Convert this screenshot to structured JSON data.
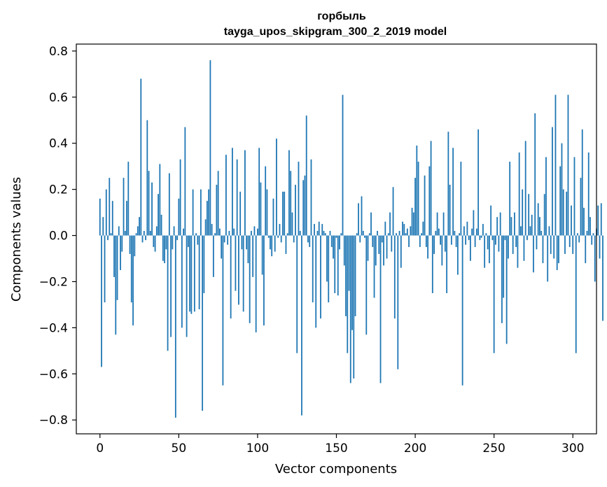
{
  "chart_data": {
    "type": "bar",
    "title": "горбыль",
    "subtitle": "tayga_upos_skipgram_300_2_2019 model",
    "xlabel": "Vector components",
    "ylabel": "Components values",
    "xlim": [
      -15,
      315
    ],
    "ylim": [
      -0.86,
      0.83
    ],
    "xticks": [
      0,
      50,
      100,
      150,
      200,
      250,
      300
    ],
    "xtick_labels": [
      "0",
      "50",
      "100",
      "150",
      "200",
      "250",
      "300"
    ],
    "yticks": [
      -0.8,
      -0.6,
      -0.4,
      -0.2,
      0.0,
      0.2,
      0.4,
      0.6,
      0.8
    ],
    "ytick_labels": [
      "−0.8",
      "−0.6",
      "−0.4",
      "−0.2",
      "0.0",
      "0.2",
      "0.4",
      "0.6",
      "0.8"
    ],
    "grid": false,
    "bar_color": "#1f77b4",
    "values": [
      0.16,
      -0.57,
      0.08,
      -0.29,
      0.2,
      -0.02,
      0.25,
      0.01,
      0.15,
      -0.18,
      -0.43,
      -0.28,
      0.04,
      -0.15,
      -0.07,
      0.25,
      0.02,
      0.15,
      0.32,
      -0.08,
      -0.29,
      -0.39,
      -0.09,
      0.01,
      0.04,
      0.08,
      0.68,
      -0.03,
      0.02,
      -0.02,
      0.5,
      0.28,
      0.02,
      0.23,
      -0.05,
      -0.07,
      0.04,
      0.18,
      0.31,
      0.09,
      -0.11,
      -0.12,
      -0.06,
      -0.5,
      0.27,
      -0.44,
      -0.06,
      0.04,
      -0.79,
      -0.02,
      0.16,
      0.33,
      -0.4,
      0.03,
      0.47,
      -0.44,
      -0.05,
      -0.33,
      -0.34,
      0.2,
      -0.33,
      0.01,
      -0.04,
      -0.32,
      0.2,
      -0.76,
      -0.25,
      0.07,
      0.15,
      0.2,
      0.76,
      0.05,
      -0.18,
      0.01,
      0.22,
      0.28,
      0.03,
      -0.1,
      -0.65,
      -0.03,
      0.35,
      -0.04,
      0.02,
      -0.36,
      0.38,
      0.03,
      -0.24,
      0.33,
      -0.3,
      0.19,
      -0.06,
      -0.33,
      0.37,
      -0.06,
      -0.12,
      -0.38,
      0.02,
      -0.18,
      0.04,
      -0.42,
      0.03,
      0.38,
      0.23,
      -0.17,
      -0.39,
      0.3,
      0.2,
      -0.01,
      -0.06,
      -0.09,
      0.16,
      -0.07,
      0.42,
      -0.01,
      0.05,
      -0.03,
      0.19,
      0.19,
      -0.08,
      0.01,
      0.37,
      0.28,
      0.1,
      -0.03,
      0.22,
      -0.51,
      0.32,
      0.02,
      -0.78,
      0.24,
      0.26,
      0.52,
      -0.03,
      -0.05,
      0.33,
      -0.29,
      0.05,
      -0.4,
      0.02,
      0.06,
      -0.36,
      0.05,
      0.02,
      0.01,
      -0.2,
      -0.29,
      0.02,
      -0.05,
      -0.1,
      -0.25,
      -0.01,
      -0.26,
      -0.06,
      0.01,
      0.61,
      -0.13,
      -0.35,
      -0.51,
      -0.24,
      -0.64,
      -0.41,
      -0.62,
      -0.35,
      0.01,
      0.14,
      -0.03,
      0.17,
      0.02,
      -0.01,
      -0.43,
      -0.11,
      0.01,
      0.1,
      -0.05,
      -0.27,
      -0.13,
      0.02,
      -0.08,
      -0.64,
      -0.03,
      -0.13,
      0.06,
      -0.1,
      0.01,
      0.1,
      -0.07,
      0.21,
      -0.36,
      0.01,
      -0.58,
      0.02,
      -0.14,
      0.06,
      0.05,
      0.01,
      0.03,
      -0.05,
      0.04,
      0.12,
      0.1,
      0.25,
      0.39,
      0.32,
      -0.05,
      0.01,
      0.06,
      0.26,
      -0.05,
      -0.1,
      0.3,
      0.41,
      -0.25,
      -0.08,
      0.02,
      0.1,
      0.03,
      -0.04,
      -0.13,
      0.1,
      -0.07,
      -0.25,
      0.45,
      0.22,
      -0.04,
      0.38,
      0.02,
      -0.05,
      -0.17,
      0.01,
      0.32,
      -0.65,
      0.04,
      -0.04,
      0.06,
      -0.02,
      -0.11,
      0.03,
      0.11,
      -0.05,
      0.03,
      0.46,
      -0.02,
      -0.01,
      0.05,
      -0.14,
      0.01,
      -0.06,
      -0.12,
      0.13,
      -0.02,
      -0.51,
      -0.04,
      0.08,
      -0.07,
      0.1,
      -0.38,
      -0.27,
      -0.02,
      -0.47,
      -0.1,
      0.32,
      0.08,
      -0.08,
      0.1,
      -0.05,
      -0.14,
      0.36,
      0.04,
      0.2,
      -0.11,
      0.41,
      -0.02,
      0.18,
      0.04,
      0.09,
      -0.16,
      0.53,
      -0.06,
      0.14,
      0.08,
      0.02,
      -0.12,
      0.18,
      0.34,
      -0.2,
      0.04,
      -0.08,
      0.47,
      -0.1,
      0.61,
      -0.15,
      -0.12,
      0.3,
      0.4,
      0.2,
      -0.08,
      0.19,
      0.61,
      -0.05,
      0.13,
      -0.08,
      0.34,
      -0.51,
      0.01,
      -0.03,
      0.25,
      0.46,
      0.12,
      -0.12,
      0.02,
      0.36,
      0.08,
      -0.04,
      0.01,
      -0.2,
      0.03,
      0.13,
      -0.1,
      0.14,
      -0.37
    ]
  }
}
